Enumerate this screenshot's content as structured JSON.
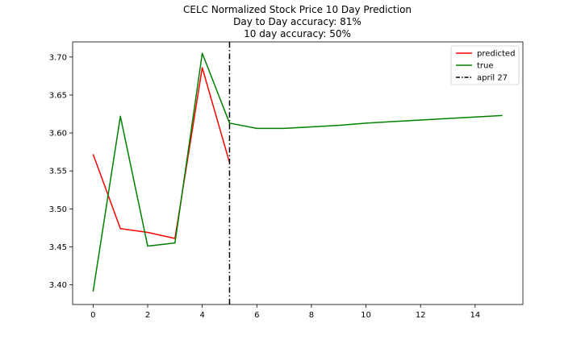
{
  "chart_data": {
    "type": "line",
    "title_lines": [
      "CELC Normalized Stock Price 10 Day Prediction",
      "Day to Day accuracy: 81%",
      "10 day accuracy: 50%"
    ],
    "xlabel": "",
    "ylabel": "",
    "xlim": [
      -0.75,
      15.75
    ],
    "ylim": [
      3.374,
      3.72
    ],
    "xticks": [
      0,
      2,
      4,
      6,
      8,
      10,
      12,
      14
    ],
    "xtick_labels": [
      "0",
      "2",
      "4",
      "6",
      "8",
      "10",
      "12",
      "14"
    ],
    "yticks": [
      3.4,
      3.45,
      3.5,
      3.55,
      3.6,
      3.65,
      3.7
    ],
    "ytick_labels": [
      "3.40",
      "3.45",
      "3.50",
      "3.55",
      "3.60",
      "3.65",
      "3.70"
    ],
    "grid": false,
    "legend_position": "top-right",
    "series": [
      {
        "name": "predicted",
        "color": "#ff0000",
        "x": [
          0,
          1,
          2,
          3,
          4,
          5
        ],
        "y": [
          3.572,
          3.474,
          3.469,
          3.461,
          3.686,
          3.561
        ]
      },
      {
        "name": "true",
        "color": "#008000",
        "x": [
          0,
          1,
          2,
          3,
          4,
          5,
          6,
          7,
          8,
          9,
          10,
          11,
          12,
          13,
          14,
          15
        ],
        "y": [
          3.391,
          3.622,
          3.451,
          3.455,
          3.705,
          3.613,
          3.606,
          3.606,
          3.608,
          3.61,
          3.613,
          3.615,
          3.617,
          3.619,
          3.621,
          3.623
        ]
      }
    ],
    "vline": {
      "name": "april 27",
      "x": 5,
      "color": "#000000",
      "style": "dash-dot"
    }
  }
}
